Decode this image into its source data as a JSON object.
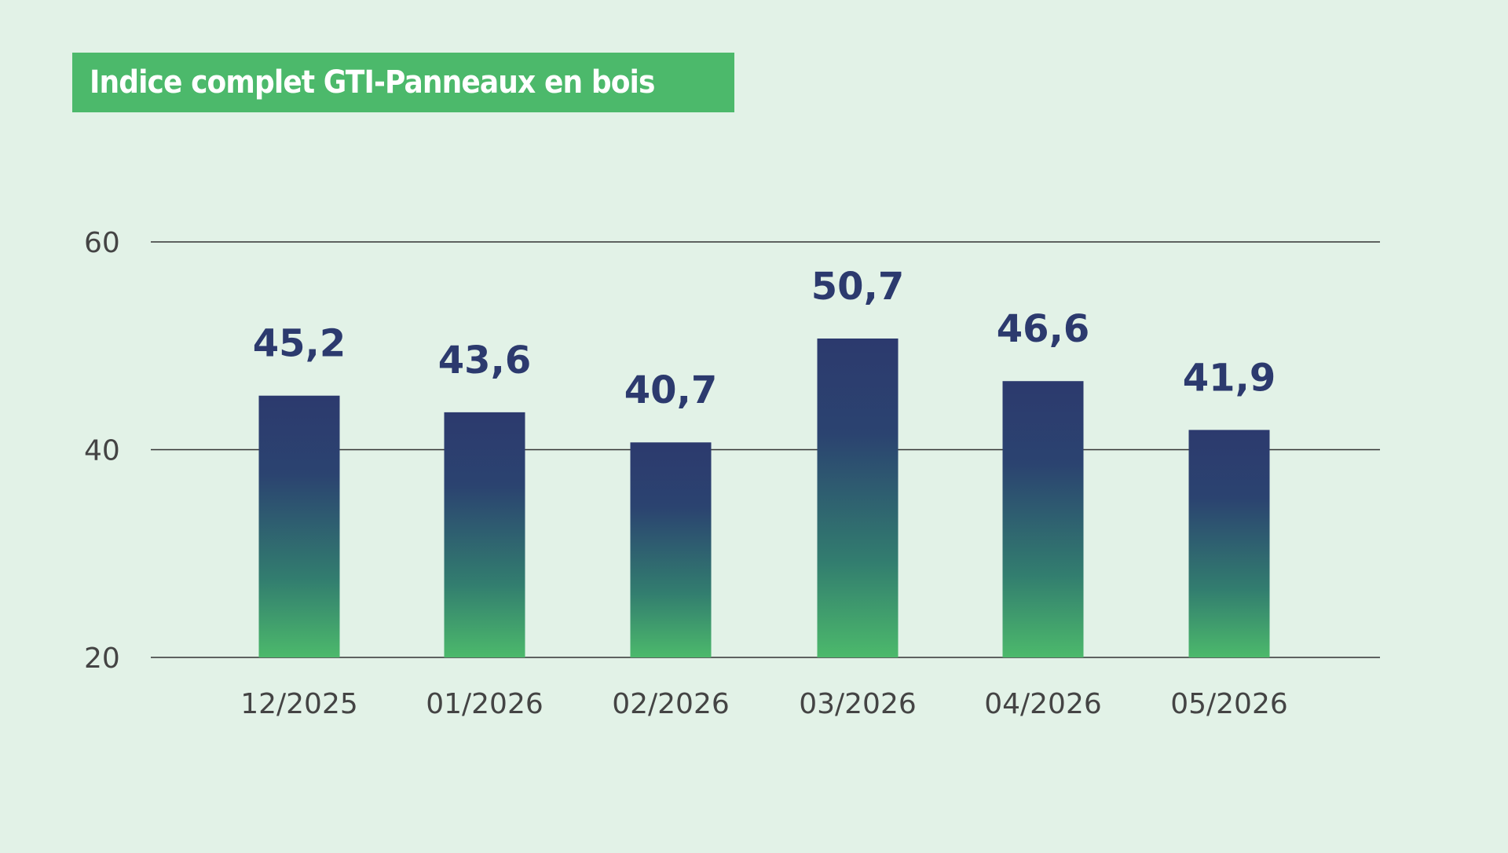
{
  "chart_data": {
    "type": "bar",
    "title": "Indice complet GTI-Panneaux en bois",
    "categories": [
      "12/2025",
      "01/2026",
      "02/2026",
      "03/2026",
      "04/2026",
      "05/2026"
    ],
    "values": [
      45.2,
      43.6,
      40.7,
      50.7,
      46.6,
      41.9
    ],
    "value_labels": [
      "45,2",
      "43,6",
      "40,7",
      "50,7",
      "46,6",
      "41,9"
    ],
    "yticks": [
      20,
      40,
      60
    ],
    "ylim": [
      20,
      60
    ],
    "grid": true,
    "xlabel": "",
    "ylabel": "",
    "colors": {
      "background": "#e2f2e7",
      "title_bg": "#4cb96b",
      "bar_top": "#2c3a6e",
      "bar_bottom": "#4cb96b",
      "value_text": "#2c3a6e",
      "grid": "#333333"
    }
  }
}
